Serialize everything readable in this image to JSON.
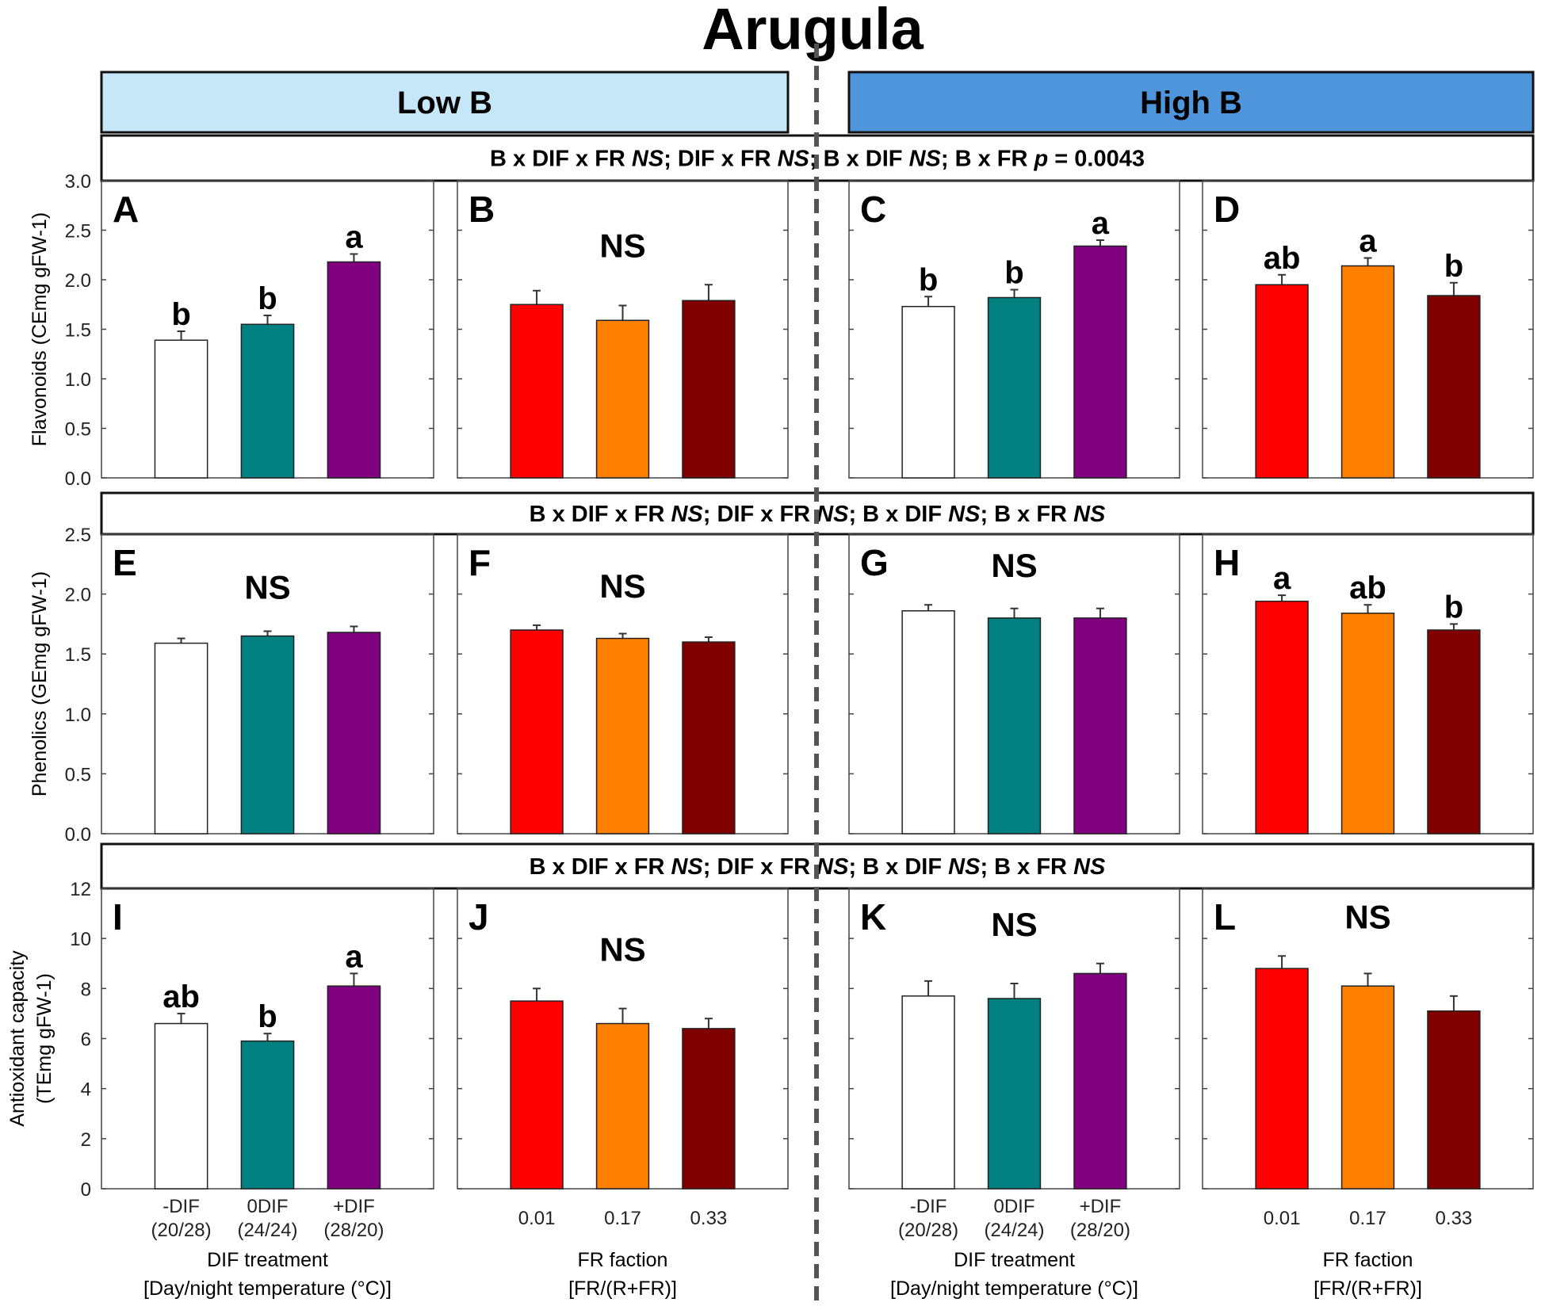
{
  "title": "Arugula",
  "headers": [
    {
      "label": "Low B",
      "color": "#c5e7f7"
    },
    {
      "label": "High B",
      "color": "#4f95dc"
    }
  ],
  "colors": {
    "dif": [
      "#ffffff",
      "#008080",
      "#800080"
    ],
    "fr": [
      "#ff0000",
      "#ff8000",
      "#800000"
    ]
  },
  "x_groups": {
    "dif": {
      "ticks": [
        [
          "-DIF",
          "(20/28)"
        ],
        [
          "0DIF",
          "(24/24)"
        ],
        [
          "+DIF",
          "(28/20)"
        ]
      ],
      "label": [
        "DIF treatment",
        "[Day/night temperature (°C)]"
      ]
    },
    "fr": {
      "ticks": [
        [
          "0.01",
          ""
        ],
        [
          "0.17",
          ""
        ],
        [
          "0.33",
          ""
        ]
      ],
      "label": [
        "FR faction",
        "[FR/(R+FR)]"
      ]
    }
  },
  "chart_data": [
    {
      "type": "bar",
      "ylabel": "Flavonoids (CEmg gFW-1)",
      "ylim": [
        0,
        3.0
      ],
      "yticks": [
        "0.0",
        "0.5",
        "1.0",
        "1.5",
        "2.0",
        "2.5",
        "3.0"
      ],
      "stats": [
        {
          "t": "B x DIF x FR "
        },
        {
          "t": "NS",
          "i": true
        },
        {
          "t": "; DIF x FR "
        },
        {
          "t": "NS",
          "i": true
        },
        {
          "t": "; B x DIF "
        },
        {
          "t": "NS",
          "i": true
        },
        {
          "t": "; B x FR "
        },
        {
          "t": "p",
          "i": true
        },
        {
          "t": " = 0.0043"
        }
      ],
      "panels": [
        {
          "id": "A",
          "group": "dif",
          "values": [
            1.39,
            1.55,
            2.18
          ],
          "errors": [
            0.09,
            0.09,
            0.08
          ],
          "letters": [
            "b",
            "b",
            "a"
          ]
        },
        {
          "id": "B",
          "group": "fr",
          "values": [
            1.75,
            1.59,
            1.79
          ],
          "errors": [
            0.14,
            0.15,
            0.16
          ],
          "ns": "NS"
        },
        {
          "id": "C",
          "group": "dif",
          "values": [
            1.73,
            1.82,
            2.34
          ],
          "errors": [
            0.1,
            0.08,
            0.06
          ],
          "letters": [
            "b",
            "b",
            "a"
          ]
        },
        {
          "id": "D",
          "group": "fr",
          "values": [
            1.95,
            2.14,
            1.84
          ],
          "errors": [
            0.1,
            0.08,
            0.13
          ],
          "letters": [
            "ab",
            "a",
            "b"
          ]
        }
      ]
    },
    {
      "type": "bar",
      "ylabel": "Phenolics (GEmg gFW-1)",
      "ylim": [
        0,
        2.5
      ],
      "yticks": [
        "0.0",
        "0.5",
        "1.0",
        "1.5",
        "2.0",
        "2.5"
      ],
      "stats": [
        {
          "t": "B x DIF x FR "
        },
        {
          "t": "NS",
          "i": true
        },
        {
          "t": "; DIF x FR "
        },
        {
          "t": "NS",
          "i": true
        },
        {
          "t": "; B x DIF "
        },
        {
          "t": "NS",
          "i": true
        },
        {
          "t": "; B x FR "
        },
        {
          "t": "NS",
          "i": true
        }
      ],
      "panels": [
        {
          "id": "E",
          "group": "dif",
          "values": [
            1.59,
            1.65,
            1.68
          ],
          "errors": [
            0.04,
            0.04,
            0.05
          ],
          "ns": "NS"
        },
        {
          "id": "F",
          "group": "fr",
          "values": [
            1.7,
            1.63,
            1.6
          ],
          "errors": [
            0.04,
            0.04,
            0.04
          ],
          "ns": "NS"
        },
        {
          "id": "G",
          "group": "dif",
          "values": [
            1.86,
            1.8,
            1.8
          ],
          "errors": [
            0.05,
            0.08,
            0.08
          ],
          "ns": "NS"
        },
        {
          "id": "H",
          "group": "fr",
          "values": [
            1.94,
            1.84,
            1.7
          ],
          "errors": [
            0.05,
            0.07,
            0.05
          ],
          "letters": [
            "a",
            "ab",
            "b"
          ]
        }
      ]
    },
    {
      "type": "bar",
      "ylabel": "Antioxidant capacity (TEmg gFW-1)",
      "ylabel_lines": [
        "Antioxidant capacity",
        "(TEmg gFW-1)"
      ],
      "ylim": [
        0,
        12
      ],
      "yticks": [
        "0",
        "2",
        "4",
        "6",
        "8",
        "10",
        "12"
      ],
      "stats": [
        {
          "t": "B x DIF x FR "
        },
        {
          "t": "NS",
          "i": true
        },
        {
          "t": "; DIF x FR "
        },
        {
          "t": "NS",
          "i": true
        },
        {
          "t": "; B x DIF "
        },
        {
          "t": "NS",
          "i": true
        },
        {
          "t": "; B x FR "
        },
        {
          "t": "NS",
          "i": true
        }
      ],
      "panels": [
        {
          "id": "I",
          "group": "dif",
          "values": [
            6.6,
            5.9,
            8.1
          ],
          "errors": [
            0.4,
            0.3,
            0.5
          ],
          "letters": [
            "ab",
            "b",
            "a"
          ]
        },
        {
          "id": "J",
          "group": "fr",
          "values": [
            7.5,
            6.6,
            6.4
          ],
          "errors": [
            0.5,
            0.6,
            0.4
          ],
          "ns": "NS"
        },
        {
          "id": "K",
          "group": "dif",
          "values": [
            7.7,
            7.6,
            8.6
          ],
          "errors": [
            0.6,
            0.6,
            0.4
          ],
          "ns": "NS"
        },
        {
          "id": "L",
          "group": "fr",
          "values": [
            8.8,
            8.1,
            7.1
          ],
          "errors": [
            0.5,
            0.5,
            0.6
          ],
          "ns": "NS"
        }
      ]
    }
  ]
}
